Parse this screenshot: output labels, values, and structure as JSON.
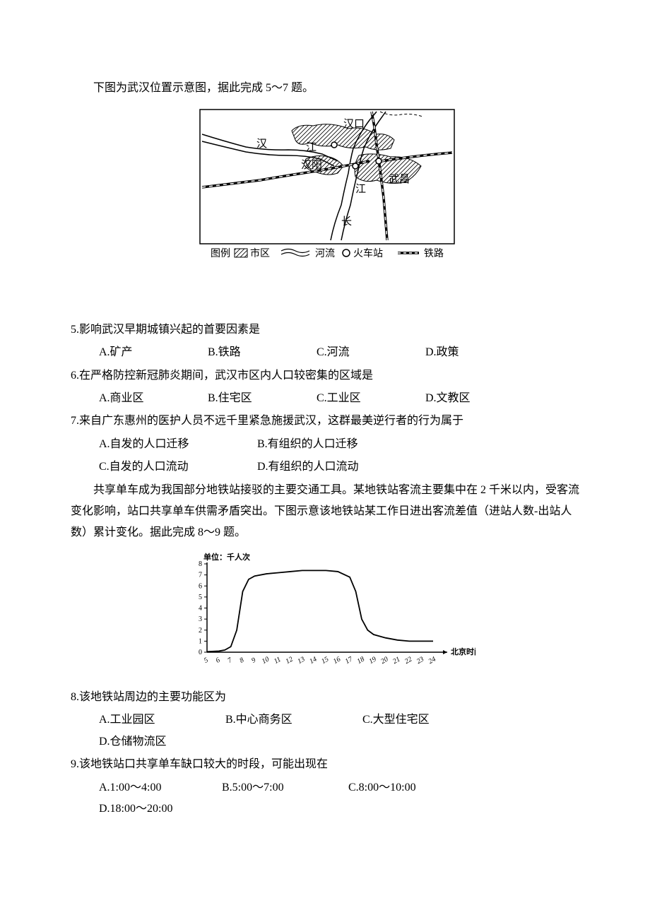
{
  "intro": "下图为武汉位置示意图，据此完成 5～7 题。",
  "map": {
    "labels": {
      "hankou": "汉口",
      "han": "汉",
      "jiang": "江",
      "hanyang": "汉阳",
      "jiang2": "江",
      "wuchang": "武昌",
      "chang": "长"
    },
    "legend": {
      "prefix": "图例",
      "urban": "市区",
      "river": "河流",
      "station": "火车站",
      "rail": "铁路"
    },
    "colors": {
      "line": "#000000",
      "hatch": "#000000",
      "bg": "#ffffff"
    }
  },
  "q5": {
    "text": "5.影响武汉早期城镇兴起的首要因素是",
    "options": {
      "A": "A.矿产",
      "B": "B.铁路",
      "C": "C.河流",
      "D": "D.政策"
    },
    "opt_widths": [
      150,
      150,
      150,
      150
    ]
  },
  "q6": {
    "text": "6.在严格防控新冠肺炎期间，武汉市区内人口较密集的区域是",
    "options": {
      "A": "A.商业区",
      "B": "B.住宅区",
      "C": "C.工业区",
      "D": "D.文教区"
    },
    "opt_widths": [
      150,
      150,
      150,
      150
    ]
  },
  "q7": {
    "text": "7.来自广东惠州的医护人员不远千里紧急施援武汉，这群最美逆行者的行为属于",
    "options": {
      "A": "A.自发的人口迁移",
      "B": "B.有组织的人口迁移",
      "C": "C.自发的人口流动",
      "D": "D.有组织的人口流动"
    },
    "opt_widths": [
      220,
      220
    ]
  },
  "para2": "共享单车成为我国部分地铁站接驳的主要交通工具。某地铁站客流主要集中在 2 千米以内，受客流变化影响，站口共享单车供需矛盾突出。下图示意该地铁站某工作日进出客流差值（进站人数-出站人数）累计变化。据此完成 8～9 题。",
  "chart": {
    "type": "line",
    "ylabel": "单位：千人次",
    "xlabel": "北京时间",
    "y_ticks": [
      0,
      1,
      2,
      3,
      4,
      5,
      6,
      7,
      8
    ],
    "x_ticks": [
      "5",
      "6",
      "7",
      "8",
      "9",
      "10",
      "11",
      "12",
      "13",
      "14",
      "15",
      "16",
      "17",
      "18",
      "19",
      "20",
      "21",
      "22",
      "23",
      "24"
    ],
    "data": [
      [
        5,
        0.05
      ],
      [
        6,
        0.1
      ],
      [
        6.5,
        0.2
      ],
      [
        7,
        0.5
      ],
      [
        7.5,
        2.0
      ],
      [
        8,
        5.5
      ],
      [
        8.5,
        6.6
      ],
      [
        9,
        6.9
      ],
      [
        10,
        7.1
      ],
      [
        11,
        7.2
      ],
      [
        12,
        7.3
      ],
      [
        13,
        7.4
      ],
      [
        14,
        7.4
      ],
      [
        15,
        7.4
      ],
      [
        16,
        7.3
      ],
      [
        17,
        6.8
      ],
      [
        17.5,
        5.5
      ],
      [
        18,
        3.0
      ],
      [
        18.5,
        2.0
      ],
      [
        19,
        1.6
      ],
      [
        20,
        1.3
      ],
      [
        21,
        1.1
      ],
      [
        22,
        1.0
      ],
      [
        23,
        1.0
      ],
      [
        24,
        1.0
      ]
    ],
    "colors": {
      "axis": "#000000",
      "line": "#000000",
      "bg": "#ffffff"
    },
    "ylim": [
      0,
      8
    ],
    "xlim": [
      5,
      24
    ],
    "title_fontsize": 11,
    "tick_fontsize": 10
  },
  "q8": {
    "text": "8.该地铁站周边的主要功能区为",
    "options": {
      "A": "A.工业园区",
      "B": "B.中心商务区",
      "C": "C.大型住宅区",
      "D": "D.仓储物流区"
    },
    "opt_widths": [
      175,
      190,
      190,
      150
    ]
  },
  "q9": {
    "text": "9.该地铁站口共享单车缺口较大的时段，可能出现在",
    "options": {
      "A": "A.1:00～4:00",
      "B": "B.5:00～7:00",
      "C": "C.8:00～10:00",
      "D": "D.18:00～20:00"
    },
    "opt_widths": [
      170,
      175,
      190,
      170
    ]
  }
}
